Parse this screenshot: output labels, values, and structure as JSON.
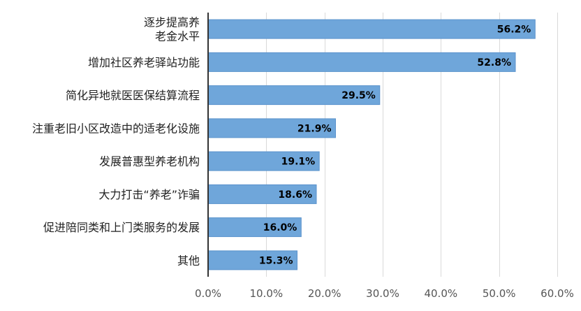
{
  "chart_data": {
    "type": "bar",
    "orientation": "horizontal",
    "categories": [
      [
        "逐步提高养",
        "老金水平"
      ],
      [
        "增加社区养老驿站功能"
      ],
      [
        "简化异地就医医保结算流程"
      ],
      [
        "注重老旧小区改造中的适老化设施"
      ],
      [
        "发展普惠型养老机构"
      ],
      [
        "大力打击“养老”诈骗"
      ],
      [
        "促进陪同类和上门类服务的发展"
      ],
      [
        "其他"
      ]
    ],
    "values": [
      56.2,
      52.8,
      29.5,
      21.9,
      19.1,
      18.6,
      16.0,
      15.3
    ],
    "value_labels": [
      "56.2%",
      "52.8%",
      "29.5%",
      "21.9%",
      "19.1%",
      "18.6%",
      "16.0%",
      "15.3%"
    ],
    "xlim": [
      0,
      60
    ],
    "xticks": [
      0,
      10,
      20,
      30,
      40,
      50,
      60
    ],
    "xtick_labels": [
      "0.0%",
      "10.0%",
      "20.0%",
      "30.0%",
      "40.0%",
      "50.0%",
      "60.0%"
    ],
    "grid": "vertical",
    "legend": "none",
    "colors": {
      "bar": "#6fa6da",
      "bar_edge": "#5b93cc",
      "grid": "#d9d9d9",
      "axis": "#333333"
    }
  }
}
